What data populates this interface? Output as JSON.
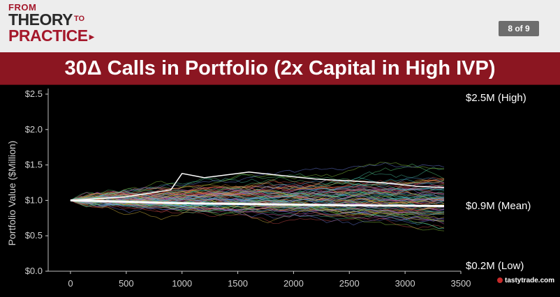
{
  "header": {
    "logo": {
      "line1": "FROM",
      "line2": "THEORY",
      "to": "TO",
      "line3": "PRACTICE"
    },
    "page_indicator": "8 of 9"
  },
  "title": "30Δ Calls in Portfolio (2x Capital in High IVP)",
  "brand": "tastytrade.com",
  "colors": {
    "title_bar": "#8b1621",
    "logo_red": "#a4182b",
    "mean_line": "#ffffff",
    "background": "#000000"
  },
  "chart_data": {
    "type": "line",
    "xlim": [
      -200,
      3500
    ],
    "ylim": [
      0,
      2.5
    ],
    "x_ticks": [
      "0",
      "500",
      "1000",
      "1500",
      "2000",
      "2500",
      "3000",
      "3500"
    ],
    "x_tick_values": [
      0,
      500,
      1000,
      1500,
      2000,
      2500,
      3000,
      3500
    ],
    "y_ticks": [
      "$0.0",
      "$0.5",
      "$1.0",
      "$1.5",
      "$2.0",
      "$2.5"
    ],
    "y_tick_values": [
      0,
      0.5,
      1.0,
      1.5,
      2.0,
      2.5
    ],
    "ylabel": "Portfolio Value ($Million)",
    "x_max_data": 3350,
    "num_simulated_paths": "many (Monte Carlo)",
    "annotations": [
      {
        "text": "$2.5M (High)",
        "value": 2.5
      },
      {
        "text": "$0.9M (Mean)",
        "value": 0.9
      },
      {
        "text": "$0.2M (Low)",
        "value": 0.2
      }
    ],
    "series": [
      {
        "values": [
          1.0,
          0.98,
          0.96,
          0.95,
          0.94,
          0.93,
          0.92
        ]
      },
      {
        "values": [
          1.0,
          1.05,
          1.15,
          1.38,
          1.32,
          1.4,
          1.3,
          1.25,
          1.2,
          1.18
        ]
      }
    ],
    "series_x": [
      [
        0,
        500,
        1000,
        1500,
        2000,
        2500,
        3350
      ],
      [
        0,
        500,
        900,
        1000,
        1200,
        1600,
        2200,
        2800,
        3100,
        3350
      ]
    ]
  }
}
